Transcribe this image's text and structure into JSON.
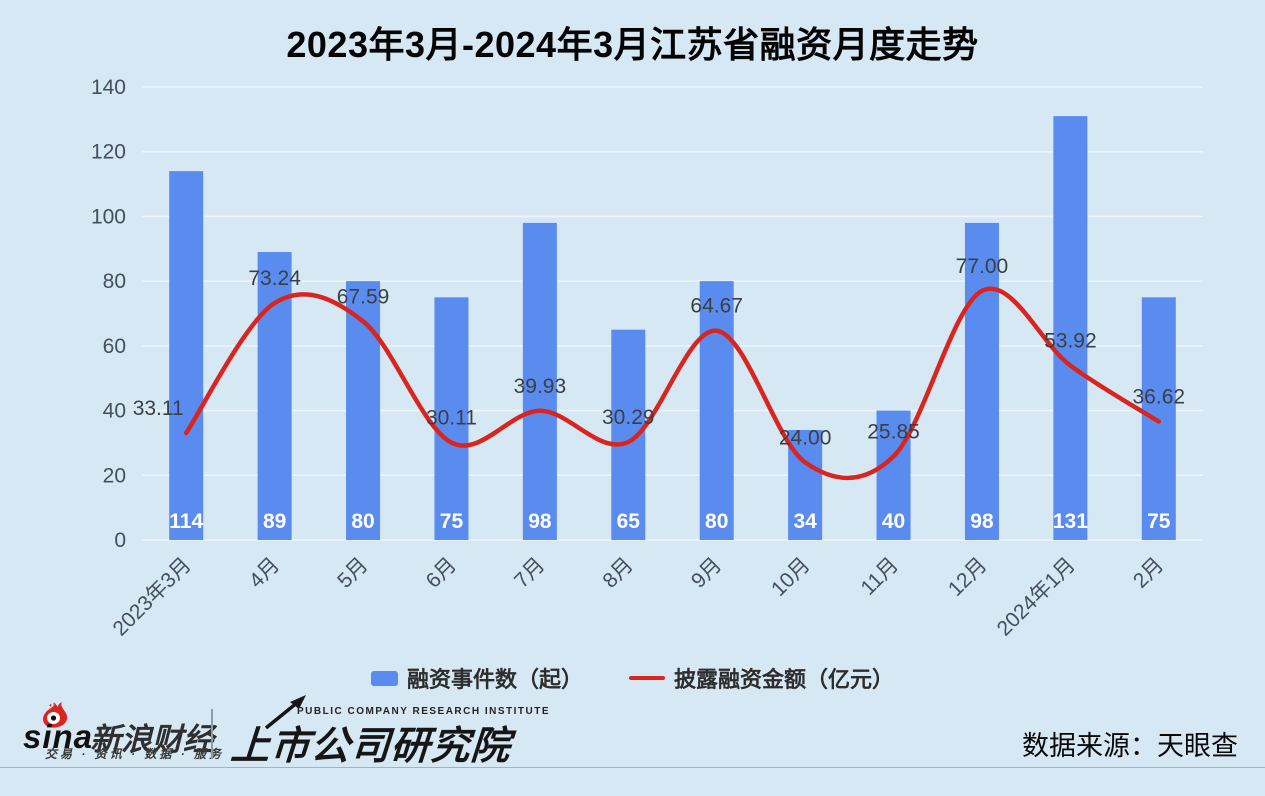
{
  "title": "2023年3月-2024年3月江苏省融资月度走势",
  "chart_data": {
    "type": "bar",
    "title": "2023年3月-2024年3月江苏省融资月度走势",
    "categories": [
      "2023年3月",
      "4月",
      "5月",
      "6月",
      "7月",
      "8月",
      "9月",
      "10月",
      "11月",
      "12月",
      "2024年1月",
      "2月"
    ],
    "series": [
      {
        "name": "融资事件数（起）",
        "type": "bar",
        "color": "#5a8cf0",
        "label_color": "#ffffff",
        "values": [
          114,
          89,
          80,
          75,
          98,
          65,
          80,
          34,
          40,
          98,
          131,
          75
        ]
      },
      {
        "name": "披露融资金额（亿元）",
        "type": "line",
        "color": "#d9251f",
        "label_color": "#3a3f45",
        "values": [
          33.11,
          73.24,
          67.59,
          30.11,
          39.93,
          30.29,
          64.67,
          24.0,
          25.85,
          77.0,
          53.92,
          36.62
        ]
      }
    ],
    "xlabel": "",
    "ylabel": "",
    "ylim": [
      0,
      140
    ],
    "ytick_step": 20,
    "grid": true,
    "legend_position": "bottom"
  },
  "legend": {
    "bar_label": "融资事件数（起）",
    "line_label": "披露融资金额（亿元）"
  },
  "footer": {
    "sina_logo_text": "sina",
    "sina_brand": "新浪财经",
    "sina_tagline": "交易 · 资讯 · 数据 · 服务",
    "institute_en": "PUBLIC COMPANY RESEARCH INSTITUTE",
    "institute_cn": "上市公司研究院",
    "data_source": "数据来源：天眼查"
  },
  "colors": {
    "background": "#d7e8f5",
    "bar": "#5a8cf0",
    "line": "#d9251f",
    "axis_text": "#454f59",
    "gridline": "rgba(255,255,255,0.55)"
  }
}
